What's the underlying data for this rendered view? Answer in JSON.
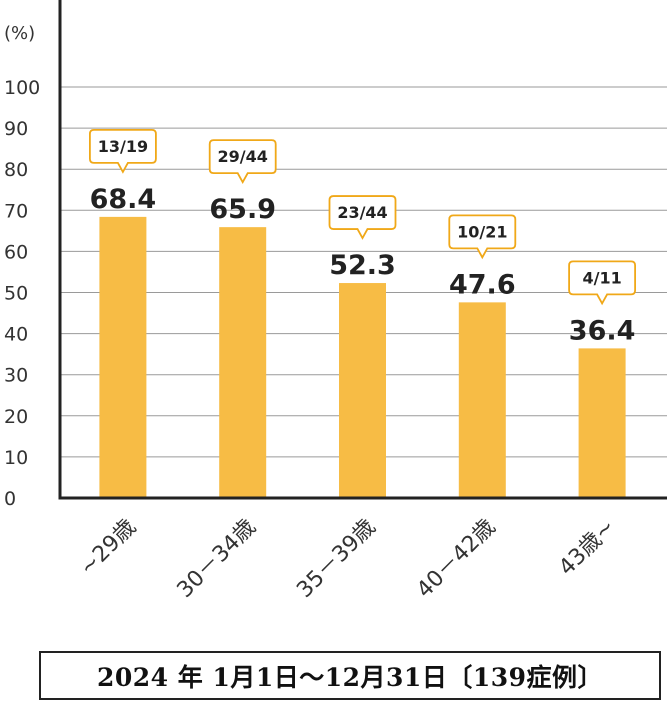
{
  "chart_data": {
    "type": "bar",
    "unit_label": "(%)",
    "ylim": [
      0,
      100
    ],
    "y_ticks": [
      0,
      10,
      20,
      30,
      40,
      50,
      60,
      70,
      80,
      90,
      100
    ],
    "grid": true,
    "categories": [
      "~29歳",
      "30－34歳",
      "35－39歳",
      "40－42歳",
      "43歳~"
    ],
    "values": [
      68.4,
      65.9,
      52.3,
      47.6,
      36.4
    ],
    "value_labels": [
      "68.4",
      "65.9",
      "52.3",
      "47.6",
      "36.4"
    ],
    "ratios": [
      "13/19",
      "29/44",
      "23/44",
      "10/21",
      "4/11"
    ],
    "colors": {
      "bar": "#F7BC45",
      "callout_border": "#F0A818",
      "grid": "#9a9a9a",
      "axis": "#222222"
    }
  },
  "caption": "2024 年 1月1日～12月31日〔139症例〕"
}
